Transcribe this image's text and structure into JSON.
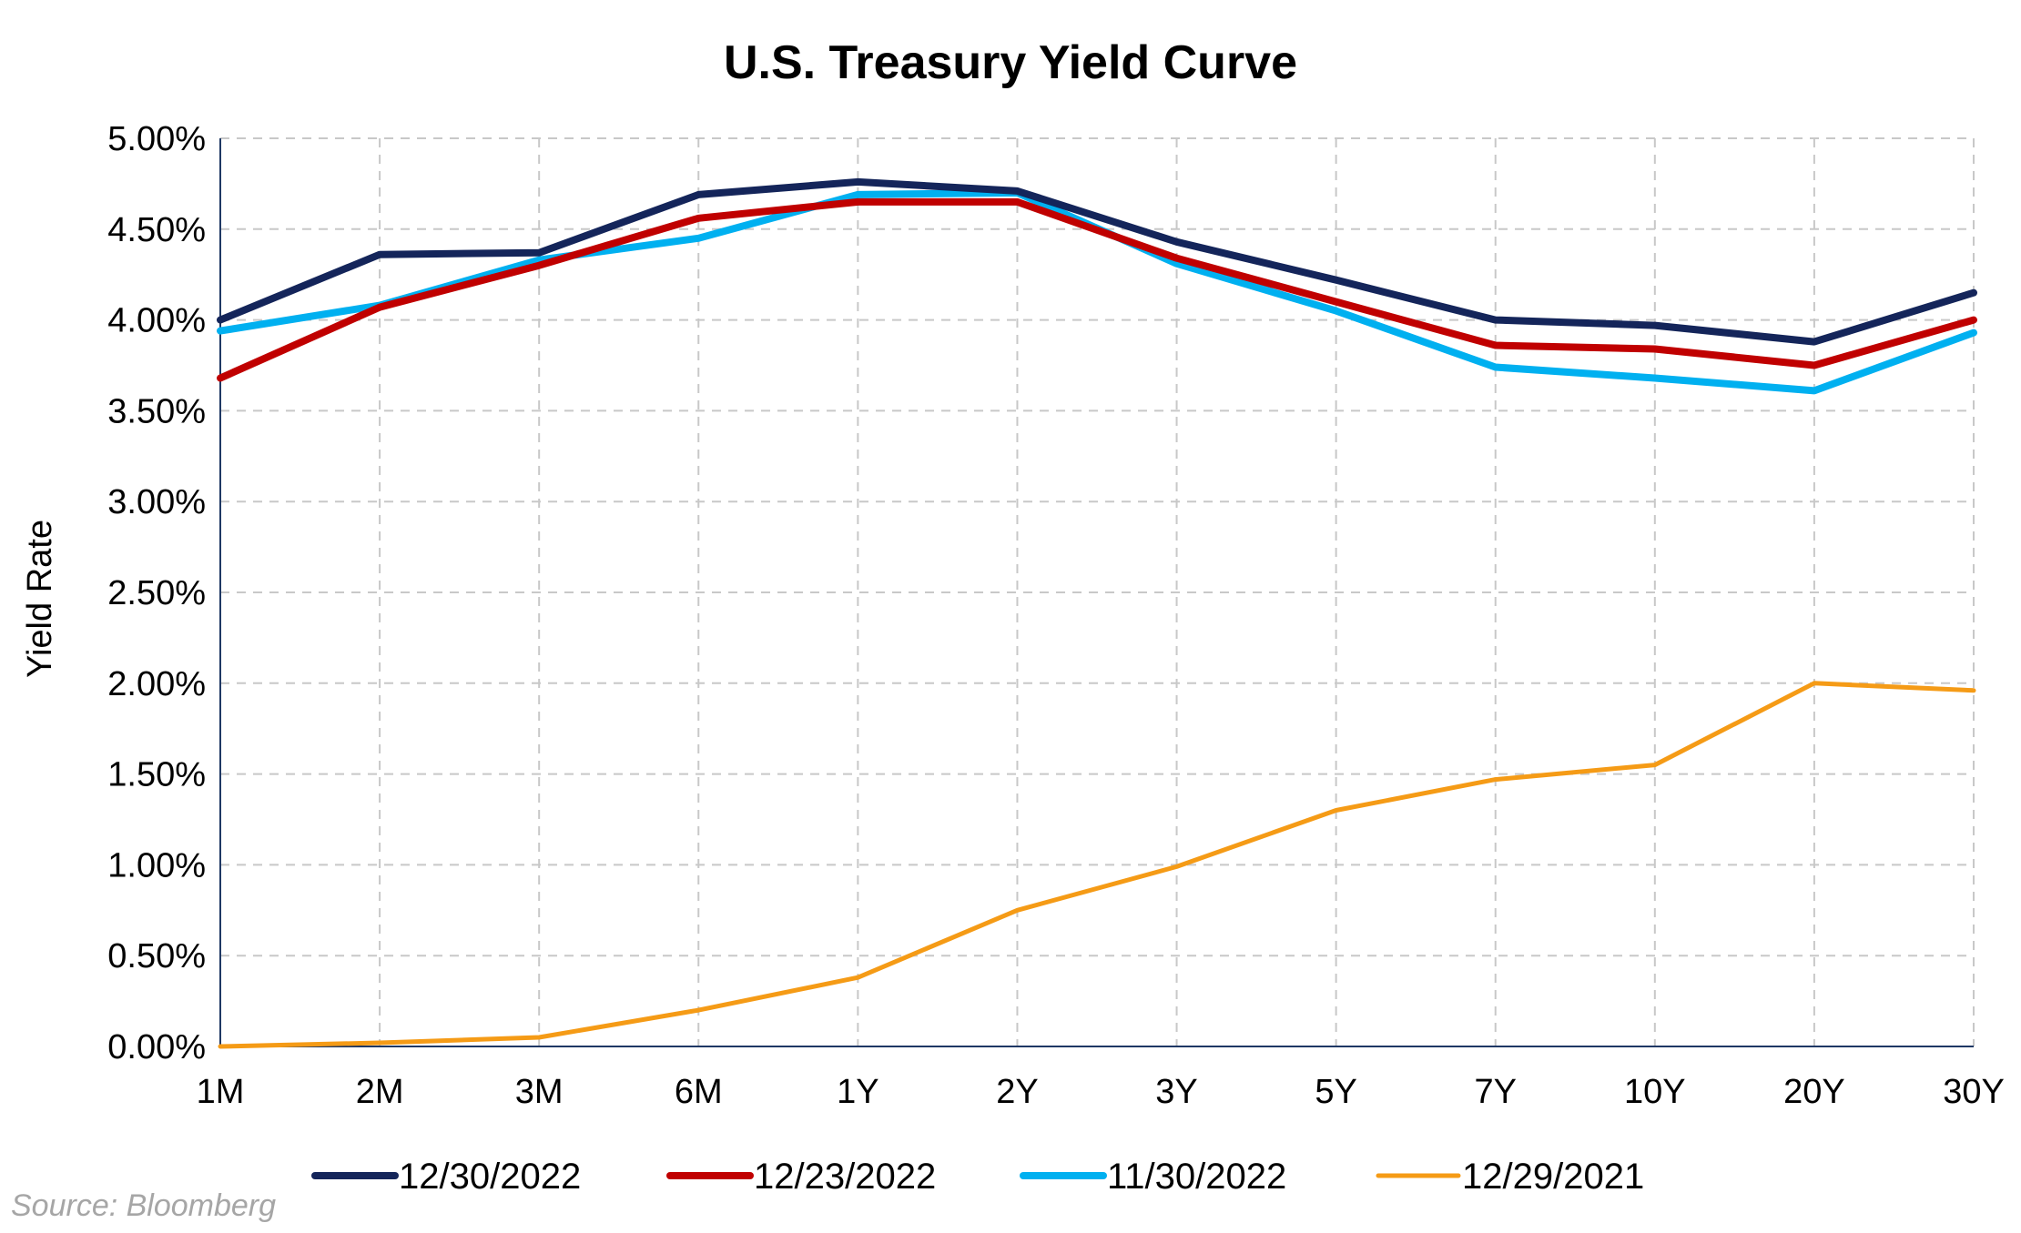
{
  "chart_data": {
    "type": "line",
    "title": "U.S. Treasury Yield Curve",
    "xlabel": "",
    "ylabel": "Yield Rate",
    "categories": [
      "1M",
      "2M",
      "3M",
      "6M",
      "1Y",
      "2Y",
      "3Y",
      "5Y",
      "7Y",
      "10Y",
      "20Y",
      "30Y"
    ],
    "ylim": [
      0,
      0.05
    ],
    "yticks": [
      {
        "value": 0.0,
        "label": "0.00%"
      },
      {
        "value": 0.005,
        "label": "0.50%"
      },
      {
        "value": 0.01,
        "label": "1.00%"
      },
      {
        "value": 0.015,
        "label": "1.50%"
      },
      {
        "value": 0.02,
        "label": "2.00%"
      },
      {
        "value": 0.025,
        "label": "2.50%"
      },
      {
        "value": 0.03,
        "label": "3.00%"
      },
      {
        "value": 0.035,
        "label": "3.50%"
      },
      {
        "value": 0.04,
        "label": "4.00%"
      },
      {
        "value": 0.045,
        "label": "4.50%"
      },
      {
        "value": 0.05,
        "label": "5.00%"
      }
    ],
    "grid": true,
    "legend_position": "bottom",
    "series": [
      {
        "name": "12/30/2022",
        "color": "#14255a",
        "values": [
          0.04,
          0.0436,
          0.0437,
          0.0469,
          0.0476,
          0.0471,
          0.0443,
          0.0422,
          0.04,
          0.0397,
          0.0388,
          0.0415
        ]
      },
      {
        "name": "12/23/2022",
        "color": "#c00000",
        "values": [
          0.0368,
          0.0407,
          0.043,
          0.0456,
          0.0465,
          0.0465,
          0.0434,
          0.041,
          0.0386,
          0.0384,
          0.0375,
          0.04
        ]
      },
      {
        "name": "11/30/2022",
        "color": "#00b0f0",
        "values": [
          0.0394,
          0.0408,
          0.0433,
          0.0445,
          0.0469,
          0.047,
          0.0431,
          0.0405,
          0.0374,
          0.0368,
          0.0361,
          0.0393
        ]
      },
      {
        "name": "12/29/2021",
        "color": "#f59b16",
        "values": [
          0.0,
          0.0002,
          0.0005,
          0.002,
          0.0038,
          0.0075,
          0.0099,
          0.013,
          0.0147,
          0.0155,
          0.02,
          0.0196
        ]
      }
    ]
  },
  "source": "Source: Bloomberg"
}
